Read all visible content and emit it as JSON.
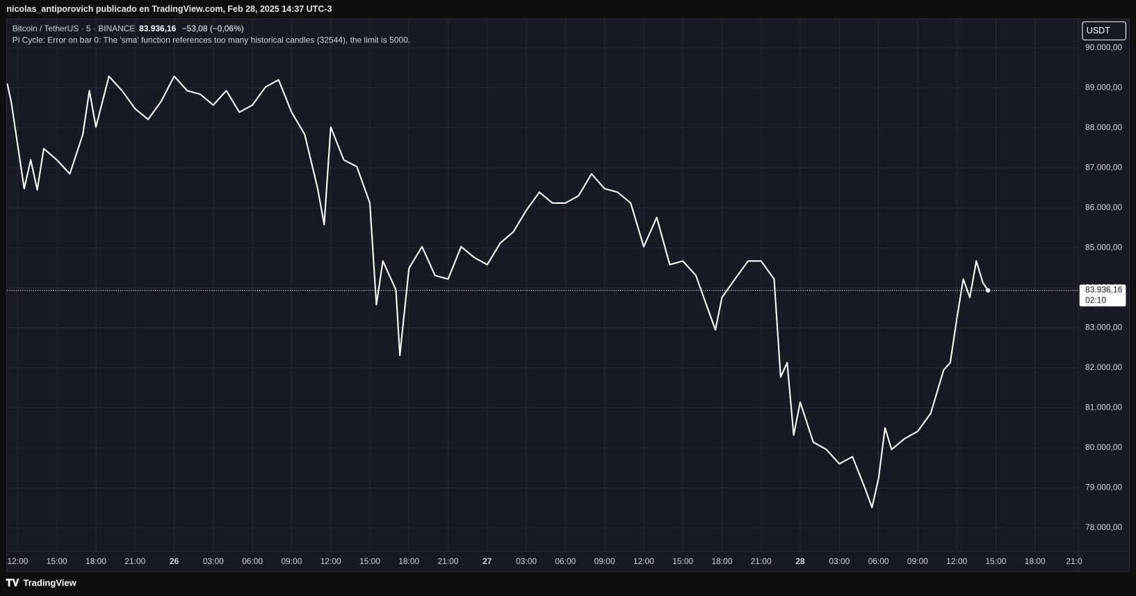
{
  "header": {
    "attribution": "nicolas_antiporovich publicado en TradingView.com, Feb 28, 2025 14:37 UTC-3"
  },
  "footer": {
    "brand": "TradingView"
  },
  "chart_data": {
    "type": "line",
    "quote": {
      "change": "−53,08 (−0,06%)"
    },
    "error_message": "Pi Cycle: Error on bar 0: The 'sma' function references too many historical candles (32544), the limit is 5000.",
    "currency_button": "USDT",
    "last_price": {
      "value": 83936.16,
      "label": "83.936,16"
    },
    "countdown": "02:10",
    "x": [
      11.2,
      11.5,
      12,
      12.5,
      13,
      13.5,
      14,
      15,
      16,
      17,
      17.5,
      18,
      19,
      20,
      21,
      22,
      23,
      24,
      25,
      26,
      27,
      28,
      29,
      30,
      31,
      32,
      33,
      34,
      35,
      35.5,
      36,
      37,
      38,
      39,
      39.5,
      40,
      41,
      41.3,
      42,
      43,
      44,
      45,
      46,
      47,
      48,
      49,
      50,
      51,
      52,
      53,
      54,
      55,
      56,
      57,
      58,
      59,
      60,
      61,
      62,
      63,
      64,
      65,
      65.5,
      66,
      67,
      68,
      69,
      70,
      70.5,
      71,
      71.5,
      72,
      73,
      74,
      75,
      76,
      77,
      77.5,
      78,
      78.5,
      79,
      80,
      81,
      82,
      83,
      83.5,
      84,
      84.5,
      85,
      85.5,
      86,
      86.4
    ],
    "series": [
      {
        "name": "Bitcoin / TetherUS · 5 · BINANCE",
        "color": "#ffffff",
        "values": [
          89110,
          88660,
          87570,
          86480,
          87200,
          86450,
          87480,
          87200,
          86850,
          87840,
          88930,
          88020,
          89290,
          88930,
          88480,
          88210,
          88660,
          89290,
          88930,
          88840,
          88570,
          88930,
          88390,
          88570,
          89020,
          89200,
          88390,
          87840,
          86480,
          85580,
          88020,
          87200,
          87030,
          86120,
          83580,
          84670,
          83950,
          82310,
          84490,
          85030,
          84310,
          84220,
          85030,
          84760,
          84580,
          85120,
          85400,
          85940,
          86390,
          86120,
          86120,
          86300,
          86850,
          86480,
          86390,
          86120,
          85030,
          85760,
          84580,
          84670,
          84310,
          83400,
          82950,
          83760,
          84220,
          84670,
          84670,
          84220,
          81770,
          82130,
          80320,
          81140,
          80140,
          79960,
          79600,
          79780,
          78960,
          78510,
          79230,
          80500,
          79960,
          80230,
          80410,
          80860,
          81950,
          82130,
          83220,
          84220,
          83760,
          84670,
          84130,
          83936.16
        ]
      }
    ],
    "xlim": [
      11.2,
      93.3
    ],
    "ylim": [
      77420,
      90725
    ],
    "xticks": [
      {
        "value": 12,
        "label": "12:00"
      },
      {
        "value": 15,
        "label": "15:00"
      },
      {
        "value": 18,
        "label": "18:00"
      },
      {
        "value": 21,
        "label": "21:00"
      },
      {
        "value": 24,
        "label": "26"
      },
      {
        "value": 27,
        "label": "03:00"
      },
      {
        "value": 30,
        "label": "06:00"
      },
      {
        "value": 33,
        "label": "09:00"
      },
      {
        "value": 36,
        "label": "12:00"
      },
      {
        "value": 39,
        "label": "15:00"
      },
      {
        "value": 42,
        "label": "18:00"
      },
      {
        "value": 45,
        "label": "21:00"
      },
      {
        "value": 48,
        "label": "27"
      },
      {
        "value": 51,
        "label": "03:00"
      },
      {
        "value": 54,
        "label": "06:00"
      },
      {
        "value": 57,
        "label": "09:00"
      },
      {
        "value": 60,
        "label": "12:00"
      },
      {
        "value": 63,
        "label": "15:00"
      },
      {
        "value": 66,
        "label": "18:00"
      },
      {
        "value": 69,
        "label": "21:00"
      },
      {
        "value": 72,
        "label": "28"
      },
      {
        "value": 75,
        "label": "03:00"
      },
      {
        "value": 78,
        "label": "06:00"
      },
      {
        "value": 81,
        "label": "09:00"
      },
      {
        "value": 84,
        "label": "12:00"
      },
      {
        "value": 87,
        "label": "15:00"
      },
      {
        "value": 90,
        "label": "18:00"
      },
      {
        "value": 93,
        "label": "21:0"
      }
    ],
    "yticks": [
      {
        "value": 78000,
        "label": "78.000,00"
      },
      {
        "value": 79000,
        "label": "79.000,00"
      },
      {
        "value": 80000,
        "label": "80.000,00"
      },
      {
        "value": 81000,
        "label": "81.000,00"
      },
      {
        "value": 82000,
        "label": "82.000,00"
      },
      {
        "value": 83000,
        "label": "83.000,00"
      },
      {
        "value": 84000,
        "label": "84.000,00"
      },
      {
        "value": 85000,
        "label": "85.000,00"
      },
      {
        "value": 86000,
        "label": "86.000,00"
      },
      {
        "value": 87000,
        "label": "87.000,00"
      },
      {
        "value": 88000,
        "label": "88.000,00"
      },
      {
        "value": 89000,
        "label": "89.000,00"
      },
      {
        "value": 90000,
        "label": "90.000,00"
      }
    ],
    "grid": true
  }
}
